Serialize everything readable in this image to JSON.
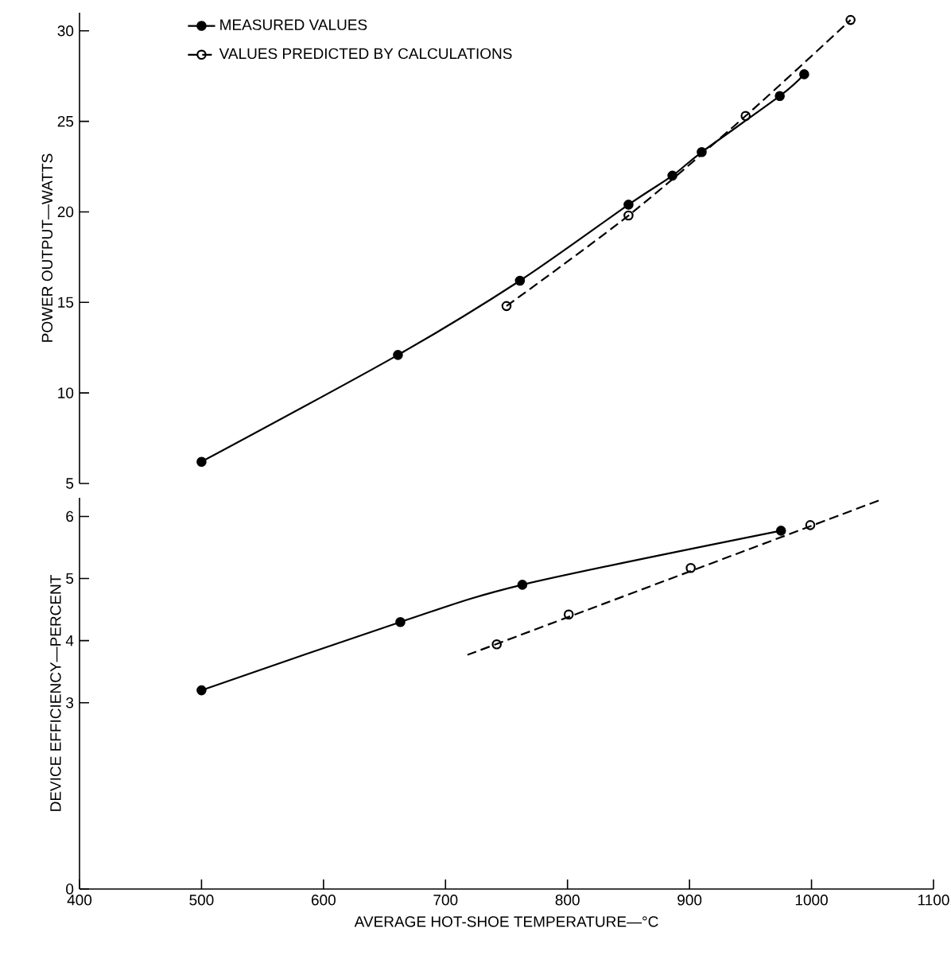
{
  "chart_data": [
    {
      "type": "line",
      "ylabel": "POWER OUTPUT—WATTS",
      "xlim": [
        400,
        1100
      ],
      "ylim": [
        5,
        31
      ],
      "yticks": [
        5,
        10,
        15,
        20,
        25,
        30
      ],
      "tick_labels": "y",
      "legend": "top left",
      "series": [
        {
          "name": "MEASURED VALUES",
          "color": "#000000",
          "marker": "circle",
          "line_style": "solid",
          "x": [
            500,
            661,
            761,
            850,
            886,
            910,
            974,
            994
          ],
          "values": [
            6.2,
            12.1,
            16.2,
            20.4,
            22.0,
            23.3,
            26.4,
            27.6
          ]
        },
        {
          "name": "VALUES PREDICTED BY CALCULATIONS",
          "color": "#000000",
          "marker": "open circle",
          "line_style": "dashed",
          "x": [
            750,
            850,
            946,
            1032
          ],
          "values": [
            14.8,
            19.8,
            25.3,
            30.6
          ]
        }
      ]
    },
    {
      "type": "line",
      "xlabel": "AVERAGE HOT-SHOE TEMPERATURE—°C",
      "ylabel": "DEVICE EFFICIENCY—PERCENT",
      "xlim": [
        400,
        1100
      ],
      "xticks": [
        400,
        500,
        600,
        700,
        800,
        900,
        1000,
        1100
      ],
      "ylim": [
        0,
        6.3
      ],
      "yticks": [
        0,
        3,
        4,
        5,
        6
      ],
      "series": [
        {
          "color": "#000000",
          "marker": "circle",
          "line_style": "solid",
          "x": [
            500,
            663,
            763,
            975
          ],
          "values": [
            3.2,
            4.3,
            4.9,
            5.77
          ]
        },
        {
          "type": "scatter",
          "color": "#000000",
          "marker": "open circle",
          "x": [
            742,
            801,
            901,
            999
          ],
          "values": [
            3.94,
            4.42,
            5.17,
            5.86
          ]
        },
        {
          "type": "line",
          "color": "#000000",
          "marker": "none",
          "line_style": "dashed",
          "x": [
            718,
            1057
          ],
          "values": [
            3.77,
            6.27
          ]
        }
      ]
    }
  ]
}
